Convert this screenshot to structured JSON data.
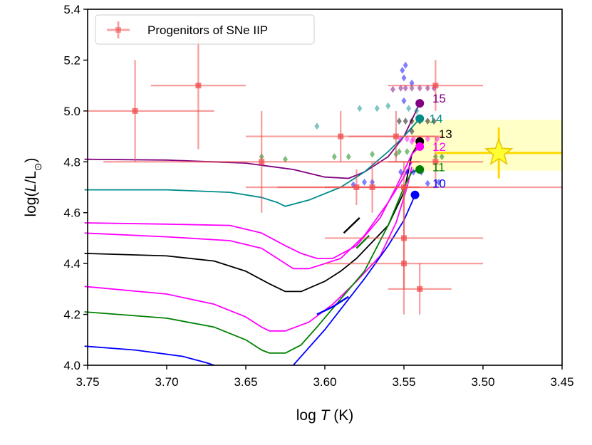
{
  "chart_data": {
    "type": "scatter",
    "title": "",
    "xlabel_prefix": "log ",
    "xlabel_var": "T",
    "xlabel_suffix": " (K)",
    "ylabel_prefix": "log(",
    "ylabel_var": "L",
    "ylabel_suffix": "/L",
    "ylabel_sub": "⊙",
    "ylabel_close": ")",
    "xlim": [
      3.75,
      3.45
    ],
    "ylim": [
      4.0,
      5.4
    ],
    "x_ticks": [
      "3.75",
      "3.70",
      "3.65",
      "3.60",
      "3.55",
      "3.50",
      "3.45"
    ],
    "y_ticks": [
      "4.0",
      "4.2",
      "4.4",
      "4.6",
      "4.8",
      "5.0",
      "5.2",
      "5.4"
    ],
    "legend": {
      "label": "Progenitors of SNe IIP",
      "location": "upper-left"
    },
    "progenitors": [
      {
        "logT": 3.72,
        "logL": 5.0,
        "xerr": 0.05,
        "yerr": 0.2
      },
      {
        "logT": 3.68,
        "logL": 5.1,
        "xerr": 0.03,
        "yerr": 0.25
      },
      {
        "logT": 3.64,
        "logL": 4.8,
        "xerr": 0.1,
        "yerr": 0.2
      },
      {
        "logT": 3.59,
        "logL": 4.9,
        "xerr": 0.06,
        "yerr": 0.1
      },
      {
        "logT": 3.58,
        "logL": 4.7,
        "xerr": 0.05,
        "yerr": 0.07
      },
      {
        "logT": 3.57,
        "logL": 4.7,
        "xerr": 0.03,
        "yerr": 0.1
      },
      {
        "logT": 3.555,
        "logL": 4.9,
        "xerr": 0.03,
        "yerr": 0.1
      },
      {
        "logT": 3.55,
        "logL": 4.7,
        "xerr": 0.1,
        "yerr": 0.1
      },
      {
        "logT": 3.55,
        "logL": 4.5,
        "xerr": 0.05,
        "yerr": 0.2
      },
      {
        "logT": 3.55,
        "logL": 4.4,
        "xerr": 0.05,
        "yerr": 0.2
      },
      {
        "logT": 3.54,
        "logL": 4.3,
        "xerr": 0.02,
        "yerr": 0.1
      },
      {
        "logT": 3.53,
        "logL": 5.1,
        "xerr": 0.03,
        "yerr": 0.1
      },
      {
        "logT": 3.53,
        "logL": 4.8,
        "xerr": 0.03,
        "yerr": 0.1
      }
    ],
    "highlight": {
      "logT": 3.49,
      "logL": 4.835,
      "xerr": 0.04,
      "yerr": 0.1,
      "band_logT": [
        3.545,
        3.45
      ],
      "band_logL": [
        4.765,
        4.965
      ]
    },
    "tracks": [
      {
        "mass": "15",
        "color": "#800080",
        "points": [
          [
            3.752,
            4.81
          ],
          [
            3.7,
            4.807
          ],
          [
            3.65,
            4.795
          ],
          [
            3.62,
            4.77
          ],
          [
            3.6,
            4.74
          ],
          [
            3.585,
            4.735
          ],
          [
            3.575,
            4.76
          ],
          [
            3.56,
            4.82
          ],
          [
            3.55,
            4.9
          ],
          [
            3.54,
            5.03
          ]
        ],
        "endpoint": [
          3.54,
          5.03
        ],
        "label_pos": [
          3.532,
          5.05
        ]
      },
      {
        "mass": "14",
        "color": "#008B8B",
        "points": [
          [
            3.752,
            4.69
          ],
          [
            3.7,
            4.69
          ],
          [
            3.66,
            4.68
          ],
          [
            3.64,
            4.66
          ],
          [
            3.63,
            4.64
          ],
          [
            3.625,
            4.625
          ],
          [
            3.61,
            4.65
          ],
          [
            3.59,
            4.7
          ],
          [
            3.575,
            4.76
          ],
          [
            3.56,
            4.84
          ],
          [
            3.55,
            4.9
          ],
          [
            3.54,
            4.97
          ]
        ],
        "endpoint": [
          3.54,
          4.97
        ],
        "label_pos": [
          3.534,
          4.97
        ]
      },
      {
        "mass": "13",
        "color": "#000000",
        "points": [
          [
            3.752,
            4.44
          ],
          [
            3.7,
            4.43
          ],
          [
            3.67,
            4.41
          ],
          [
            3.65,
            4.37
          ],
          [
            3.635,
            4.32
          ],
          [
            3.625,
            4.29
          ],
          [
            3.615,
            4.29
          ],
          [
            3.6,
            4.33
          ],
          [
            3.59,
            4.37
          ],
          [
            3.58,
            4.42
          ],
          [
            3.56,
            4.55
          ],
          [
            3.55,
            4.68
          ],
          [
            3.545,
            4.83
          ],
          [
            3.54,
            4.88
          ]
        ],
        "endpoint": [
          3.54,
          4.88
        ],
        "label_pos": [
          3.528,
          4.91
        ]
      },
      {
        "mass": "12",
        "color": "#FF00FF",
        "points": [
          [
            3.752,
            4.56
          ],
          [
            3.7,
            4.555
          ],
          [
            3.66,
            4.55
          ],
          [
            3.64,
            4.52
          ],
          [
            3.625,
            4.47
          ],
          [
            3.615,
            4.44
          ],
          [
            3.605,
            4.42
          ],
          [
            3.595,
            4.42
          ],
          [
            3.58,
            4.47
          ],
          [
            3.565,
            4.58
          ],
          [
            3.555,
            4.7
          ],
          [
            3.548,
            4.79
          ],
          [
            3.545,
            4.83
          ],
          [
            3.54,
            4.86
          ]
        ],
        "endpoint": [
          3.54,
          4.86
        ],
        "label_pos": [
          3.532,
          4.86
        ]
      },
      {
        "mass": "12",
        "color": "#FF00FF",
        "points": [
          [
            3.752,
            4.52
          ],
          [
            3.7,
            4.505
          ],
          [
            3.66,
            4.49
          ],
          [
            3.64,
            4.46
          ],
          [
            3.63,
            4.42
          ],
          [
            3.62,
            4.38
          ],
          [
            3.61,
            4.38
          ],
          [
            3.59,
            4.42
          ],
          [
            3.575,
            4.51
          ],
          [
            3.56,
            4.64
          ],
          [
            3.55,
            4.74
          ],
          [
            3.545,
            4.8
          ]
        ],
        "endpoint": null,
        "label_pos": null
      },
      {
        "mass": "12",
        "color": "#FF00FF",
        "points": [
          [
            3.752,
            4.31
          ],
          [
            3.7,
            4.28
          ],
          [
            3.67,
            4.24
          ],
          [
            3.65,
            4.19
          ],
          [
            3.64,
            4.15
          ],
          [
            3.635,
            4.135
          ],
          [
            3.625,
            4.135
          ],
          [
            3.61,
            4.17
          ],
          [
            3.595,
            4.24
          ],
          [
            3.58,
            4.33
          ],
          [
            3.565,
            4.43
          ],
          [
            3.555,
            4.56
          ],
          [
            3.548,
            4.7
          ],
          [
            3.545,
            4.78
          ]
        ],
        "endpoint": null,
        "label_pos": null
      },
      {
        "mass": "11",
        "color": "#008000",
        "points": [
          [
            3.752,
            4.21
          ],
          [
            3.7,
            4.185
          ],
          [
            3.67,
            4.15
          ],
          [
            3.65,
            4.1
          ],
          [
            3.64,
            4.06
          ],
          [
            3.635,
            4.048
          ],
          [
            3.625,
            4.048
          ],
          [
            3.615,
            4.08
          ],
          [
            3.605,
            4.15
          ],
          [
            3.59,
            4.26
          ],
          [
            3.575,
            4.37
          ],
          [
            3.56,
            4.55
          ],
          [
            3.55,
            4.7
          ],
          [
            3.545,
            4.76
          ],
          [
            3.54,
            4.77
          ]
        ],
        "endpoint": [
          3.54,
          4.77
        ],
        "label_pos": [
          3.532,
          4.78
        ]
      },
      {
        "mass": "10",
        "color": "#0000FF",
        "points": [
          [
            3.752,
            4.075
          ],
          [
            3.72,
            4.06
          ],
          [
            3.69,
            4.035
          ],
          [
            3.675,
            4.01
          ],
          [
            3.67,
            4.0
          ]
        ],
        "endpoint": null,
        "label_pos": null
      },
      {
        "mass": "10",
        "color": "#0000FF",
        "points": [
          [
            3.62,
            4.0
          ],
          [
            3.6,
            4.14
          ],
          [
            3.59,
            4.22
          ],
          [
            3.575,
            4.34
          ],
          [
            3.56,
            4.47
          ],
          [
            3.55,
            4.57
          ],
          [
            3.545,
            4.64
          ],
          [
            3.543,
            4.67
          ]
        ],
        "endpoint": [
          3.543,
          4.67
        ],
        "label_pos": [
          3.532,
          4.715
        ]
      }
    ],
    "track_fragments": [
      {
        "color": "#000000",
        "points": [
          [
            3.588,
            4.52
          ],
          [
            3.578,
            4.58
          ]
        ]
      },
      {
        "color": "#008000",
        "points": [
          [
            3.58,
            4.46
          ],
          [
            3.572,
            4.51
          ]
        ]
      },
      {
        "color": "#0000FF",
        "points": [
          [
            3.605,
            4.2
          ],
          [
            3.595,
            4.23
          ],
          [
            3.585,
            4.27
          ]
        ]
      }
    ],
    "diamonds": [
      {
        "color": "#008B8B",
        "pts": [
          [
            3.605,
            4.94
          ],
          [
            3.578,
            5.01
          ],
          [
            3.567,
            5.01
          ],
          [
            3.56,
            5.02
          ],
          [
            3.547,
            5.01
          ],
          [
            3.542,
            5.0
          ]
        ]
      },
      {
        "color": "#008000",
        "pts": [
          [
            3.64,
            4.82
          ],
          [
            3.625,
            4.81
          ],
          [
            3.594,
            4.82
          ],
          [
            3.585,
            4.82
          ],
          [
            3.57,
            4.83
          ],
          [
            3.555,
            4.83
          ],
          [
            3.553,
            4.84
          ],
          [
            3.548,
            4.84
          ],
          [
            3.53,
            4.82
          ],
          [
            3.526,
            4.82
          ]
        ]
      },
      {
        "color": "#800080",
        "pts": [
          [
            3.552,
            5.09
          ],
          [
            3.549,
            5.09
          ],
          [
            3.545,
            5.09
          ],
          [
            3.54,
            5.09
          ],
          [
            3.535,
            5.09
          ],
          [
            3.531,
            5.09
          ],
          [
            3.557,
            5.085
          ]
        ]
      },
      {
        "color": "#000000",
        "pts": [
          [
            3.553,
            4.96
          ],
          [
            3.549,
            4.96
          ],
          [
            3.545,
            4.96
          ],
          [
            3.54,
            4.96
          ],
          [
            3.535,
            4.96
          ],
          [
            3.531,
            4.96
          ],
          [
            3.545,
            4.92
          ]
        ]
      },
      {
        "color": "#0000FF",
        "pts": [
          [
            3.582,
            4.71
          ],
          [
            3.575,
            4.72
          ],
          [
            3.57,
            4.72
          ],
          [
            3.552,
            4.76
          ],
          [
            3.548,
            4.76
          ],
          [
            3.544,
            4.76
          ],
          [
            3.539,
            4.76
          ],
          [
            3.535,
            4.715
          ],
          [
            3.528,
            4.72
          ],
          [
            3.55,
            5.13
          ],
          [
            3.551,
            5.16
          ],
          [
            3.549,
            5.18
          ],
          [
            3.545,
            5.11
          ],
          [
            3.55,
            5.04
          ]
        ]
      },
      {
        "color": "#FF00FF",
        "pts": [
          [
            3.552,
            4.89
          ],
          [
            3.548,
            4.89
          ],
          [
            3.544,
            4.89
          ],
          [
            3.54,
            4.89
          ],
          [
            3.535,
            4.89
          ],
          [
            3.529,
            4.89
          ],
          [
            3.545,
            4.88
          ]
        ]
      }
    ]
  }
}
